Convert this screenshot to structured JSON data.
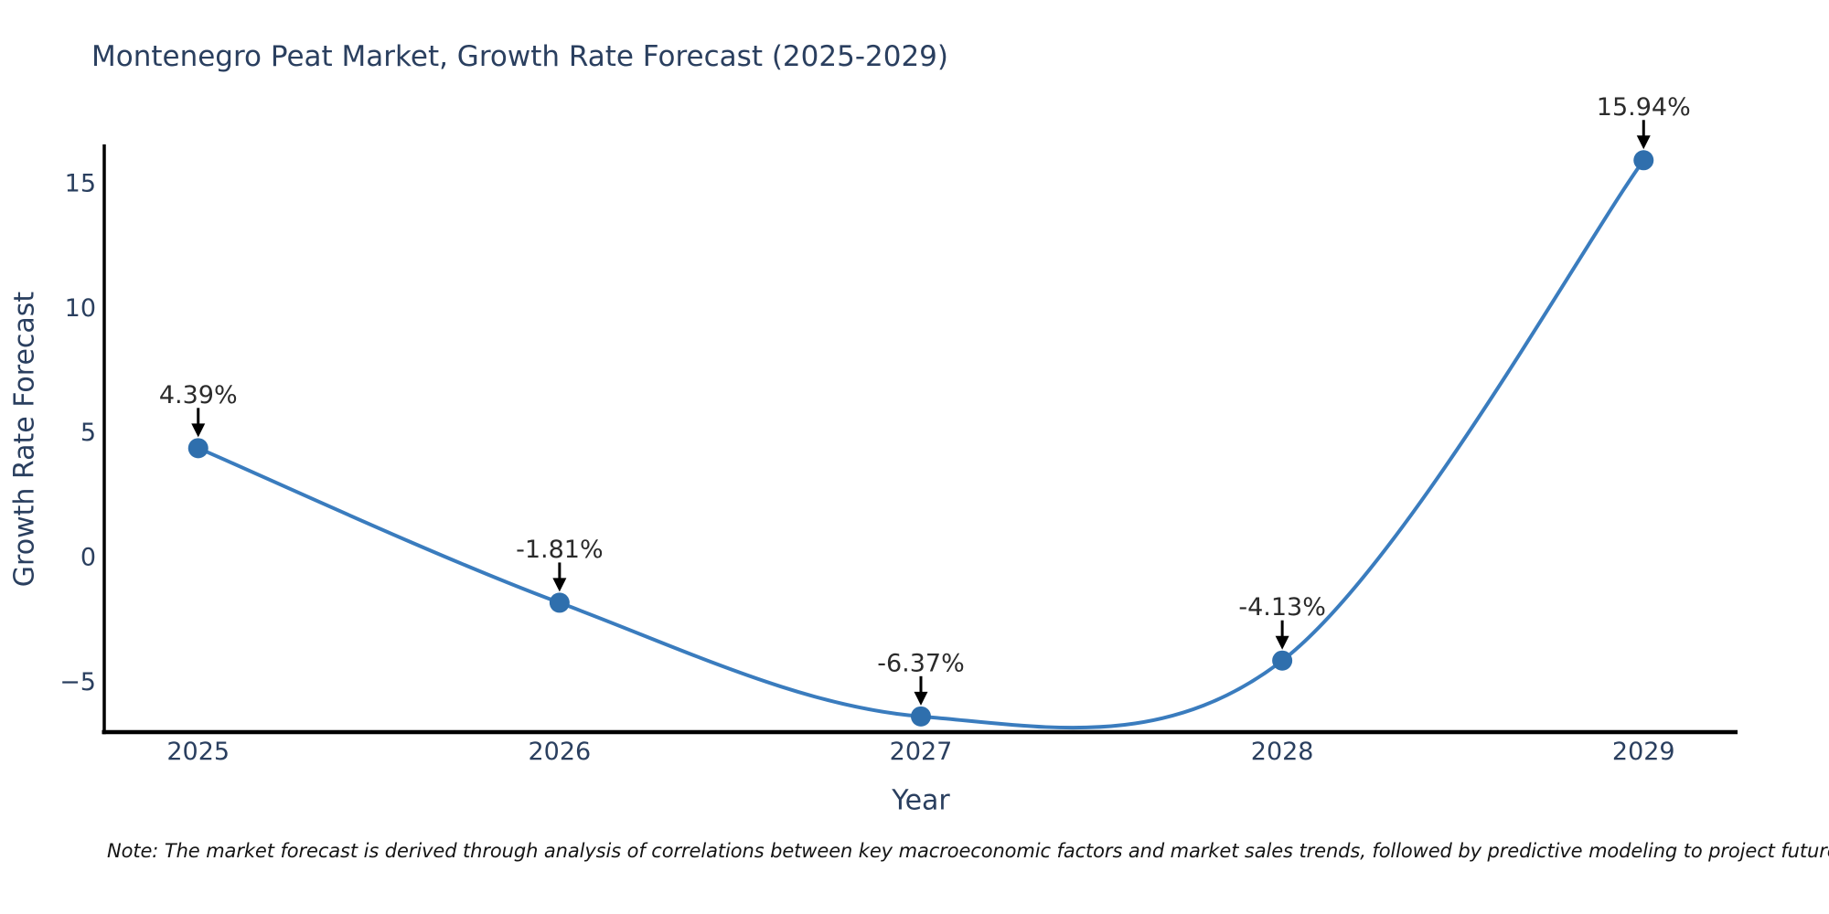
{
  "title": "Montenegro Peat Market, Growth Rate Forecast (2025-2029)",
  "note": "Note: The market forecast is derived through analysis of correlations between key macroeconomic factors and market sales trends, followed by predictive modeling to project future sales",
  "chart_data": {
    "type": "line",
    "title": "Montenegro Peat Market, Growth Rate Forecast (2025-2029)",
    "x": [
      2025,
      2026,
      2027,
      2028,
      2029
    ],
    "y": [
      4.39,
      -1.81,
      -6.37,
      -4.13,
      15.94
    ],
    "point_labels": [
      "4.39%",
      "-1.81%",
      "-6.37%",
      "-4.13%",
      "15.94%"
    ],
    "xlabel": "Year",
    "ylabel": "Growth Rate Forecast",
    "xticks": [
      2025,
      2026,
      2027,
      2028,
      2029
    ],
    "xtick_labels": [
      "2025",
      "2026",
      "2027",
      "2028",
      "2029"
    ],
    "yticks": [
      -5,
      0,
      5,
      10,
      15
    ],
    "ytick_labels": [
      "−5",
      "0",
      "5",
      "10",
      "15"
    ],
    "xlim": [
      2024.74,
      2029.26
    ],
    "ylim": [
      -7.0,
      16.5
    ],
    "line_shape": "spline",
    "grid": false,
    "legend": "none",
    "colors": {
      "line": "#3a7cbe",
      "marker": "#2f6fad",
      "axis": "#000000",
      "tick_text": "#2a3f5f",
      "axis_title_text": "#2a3f5f",
      "title_text": "#2a3f5f",
      "annotation_text": "#2b2b2b",
      "arrow": "#000000",
      "note_text": "#141414",
      "background": "#ffffff"
    }
  }
}
